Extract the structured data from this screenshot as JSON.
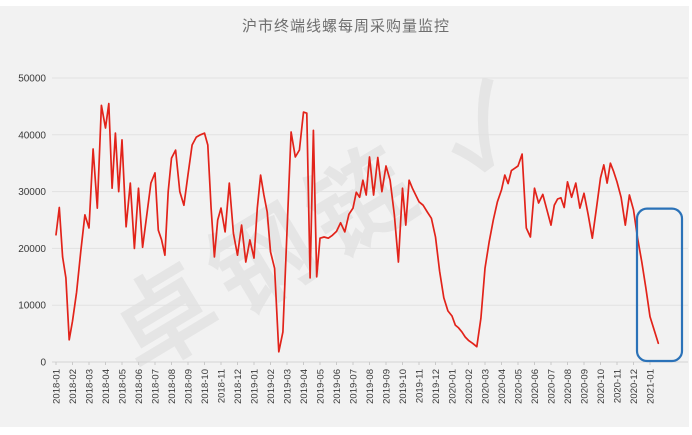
{
  "watermark_text": "卓钢链 ✓",
  "chart_data": {
    "type": "line",
    "title": "沪市终端线螺每周采购量监控",
    "xlabel": "",
    "ylabel": "",
    "ylim": [
      0,
      50000
    ],
    "y_ticks": [
      0,
      10000,
      20000,
      30000,
      40000,
      50000
    ],
    "grid": "horizontal",
    "legend": "none",
    "line_color": "#e2231a",
    "highlight": {
      "from_month": "2020-12",
      "to_month": "2021-01",
      "color": "#2b72b8",
      "top_value": 27000
    },
    "months": [
      {
        "label": "2018-01",
        "weekly_values": [
          22400,
          27200,
          18500,
          14800,
          3900
        ]
      },
      {
        "label": "2018-02",
        "weekly_values": [
          7200,
          12300,
          19500,
          25900
        ]
      },
      {
        "label": "2018-03",
        "weekly_values": [
          23600,
          37500,
          27100,
          45200
        ]
      },
      {
        "label": "2018-04",
        "weekly_values": [
          41200,
          45500,
          30600,
          40300,
          30000
        ]
      },
      {
        "label": "2018-05",
        "weekly_values": [
          39100,
          23800,
          31500,
          20000
        ]
      },
      {
        "label": "2018-06",
        "weekly_values": [
          30600,
          20200,
          25900,
          31500
        ]
      },
      {
        "label": "2018-07",
        "weekly_values": [
          33300,
          23200,
          21500,
          18800,
          30000
        ]
      },
      {
        "label": "2018-08",
        "weekly_values": [
          35900,
          37300,
          30000,
          27600
        ]
      },
      {
        "label": "2018-09",
        "weekly_values": [
          33000,
          38200,
          39600,
          40000
        ]
      },
      {
        "label": "2018-10",
        "weekly_values": [
          40300,
          38200,
          27100,
          18500,
          25000
        ]
      },
      {
        "label": "2018-11",
        "weekly_values": [
          27100,
          22900,
          31500,
          22700
        ]
      },
      {
        "label": "2018-12",
        "weekly_values": [
          18800,
          24100,
          17600,
          21500
        ]
      },
      {
        "label": "2019-01",
        "weekly_values": [
          18300,
          27100,
          32900,
          29400,
          26400
        ]
      },
      {
        "label": "2019-02",
        "weekly_values": [
          19400,
          16500,
          1800,
          5300
        ]
      },
      {
        "label": "2019-03",
        "weekly_values": [
          23000,
          40500,
          36100,
          37300
        ]
      },
      {
        "label": "2019-04",
        "weekly_values": [
          44000,
          43800,
          14800,
          40800,
          15000
        ]
      },
      {
        "label": "2019-05",
        "weekly_values": [
          21800,
          22000,
          21800,
          22300
        ]
      },
      {
        "label": "2019-06",
        "weekly_values": [
          23000,
          24500,
          22900,
          26000
        ]
      },
      {
        "label": "2019-07",
        "weekly_values": [
          27100,
          29900,
          29000,
          32000,
          29400
        ]
      },
      {
        "label": "2019-08",
        "weekly_values": [
          36100,
          29400,
          36000,
          30000
        ]
      },
      {
        "label": "2019-09",
        "weekly_values": [
          34500,
          32000,
          26000,
          17600
        ]
      },
      {
        "label": "2019-10",
        "weekly_values": [
          30600,
          24100,
          32000,
          30600,
          29400
        ]
      },
      {
        "label": "2019-11",
        "weekly_values": [
          28200,
          27600,
          26400,
          25300
        ]
      },
      {
        "label": "2019-12",
        "weekly_values": [
          22000,
          16000,
          11300,
          9000
        ]
      },
      {
        "label": "2020-01",
        "weekly_values": [
          8100,
          6500,
          6000,
          5300,
          4400
        ]
      },
      {
        "label": "2020-02",
        "weekly_values": [
          3800,
          3300,
          2700,
          7700
        ]
      },
      {
        "label": "2020-03",
        "weekly_values": [
          16500,
          21100,
          25000,
          28200
        ]
      },
      {
        "label": "2020-04",
        "weekly_values": [
          30300,
          32900,
          31400,
          33700,
          34100
        ]
      },
      {
        "label": "2020-05",
        "weekly_values": [
          34500,
          36600,
          23600,
          22000
        ]
      },
      {
        "label": "2020-06",
        "weekly_values": [
          30600,
          28000,
          29500,
          26800
        ]
      },
      {
        "label": "2020-07",
        "weekly_values": [
          24100,
          27600,
          28700,
          28900,
          27200
        ]
      },
      {
        "label": "2020-08",
        "weekly_values": [
          31700,
          29000,
          31500,
          27100
        ]
      },
      {
        "label": "2020-09",
        "weekly_values": [
          29700,
          26000,
          21800,
          27000
        ]
      },
      {
        "label": "2020-10",
        "weekly_values": [
          32400,
          34700,
          31500,
          35000,
          33500
        ]
      },
      {
        "label": "2020-11",
        "weekly_values": [
          31700,
          29000,
          24100,
          29400
        ]
      },
      {
        "label": "2020-12",
        "weekly_values": [
          26800,
          21800,
          17600,
          13000
        ]
      },
      {
        "label": "2021-01",
        "weekly_values": [
          8000,
          3300
        ]
      }
    ]
  }
}
